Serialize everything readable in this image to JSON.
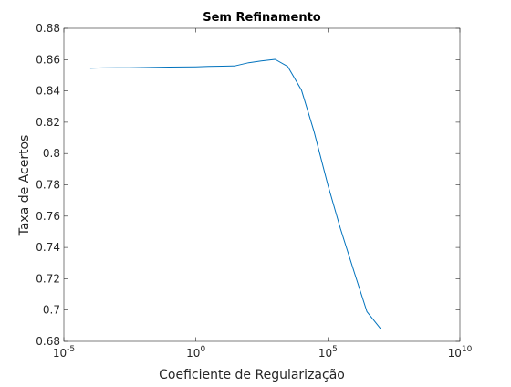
{
  "chart_data": {
    "type": "line",
    "title": "Sem Refinamento",
    "xlabel": "Coeficiente de Regularização",
    "ylabel": "Taxa de Acertos",
    "x_scale": "log",
    "xlim": [
      1e-05,
      10000000000.0
    ],
    "ylim": [
      0.68,
      0.88
    ],
    "x_ticks": [
      {
        "base": "10",
        "exp": "-5",
        "value": 1e-05
      },
      {
        "base": "10",
        "exp": "0",
        "value": 1
      },
      {
        "base": "10",
        "exp": "5",
        "value": 100000
      },
      {
        "base": "10",
        "exp": "10",
        "value": 10000000000
      }
    ],
    "y_ticks": [
      "0.68",
      "0.7",
      "0.72",
      "0.74",
      "0.76",
      "0.78",
      "0.8",
      "0.82",
      "0.84",
      "0.86",
      "0.88"
    ],
    "grid": false,
    "box": true,
    "series": [
      {
        "color": "#0072BD",
        "x": [
          0.0001,
          0.0003,
          0.001,
          0.003,
          0.01,
          0.03,
          0.1,
          0.3,
          1,
          3,
          10,
          30,
          100,
          300,
          1000,
          3000,
          10000,
          30000,
          100000,
          300000,
          1000000,
          3000000,
          10000000
        ],
        "y": [
          0.8545,
          0.8547,
          0.8548,
          0.8548,
          0.8549,
          0.8551,
          0.8552,
          0.8553,
          0.8554,
          0.8556,
          0.8558,
          0.856,
          0.858,
          0.8592,
          0.8602,
          0.8556,
          0.8405,
          0.814,
          0.78,
          0.752,
          0.724,
          0.699,
          0.688
        ]
      }
    ]
  }
}
